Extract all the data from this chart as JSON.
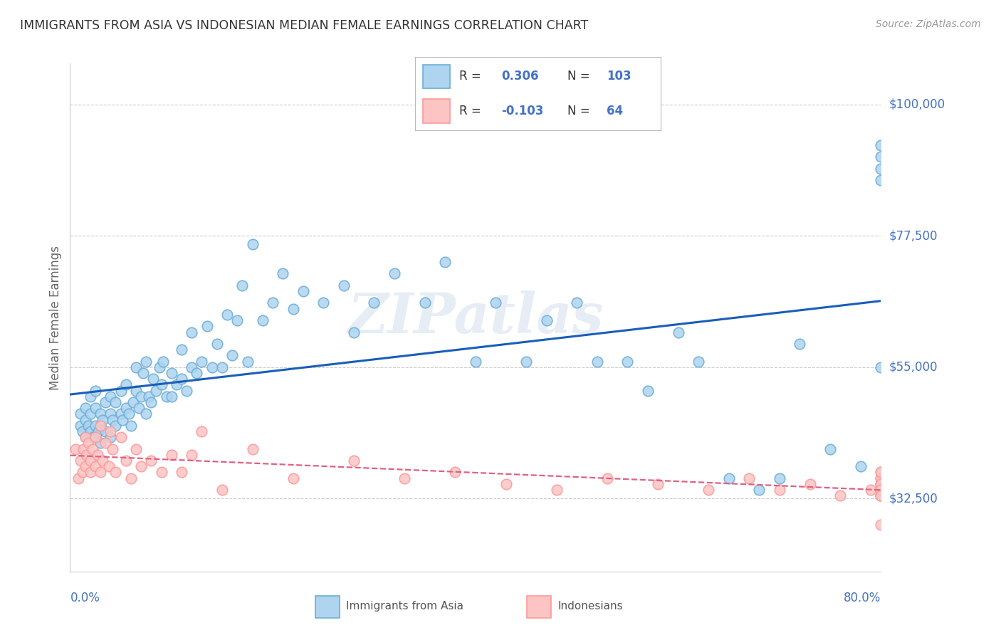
{
  "title": "IMMIGRANTS FROM ASIA VS INDONESIAN MEDIAN FEMALE EARNINGS CORRELATION CHART",
  "source": "Source: ZipAtlas.com",
  "ylabel": "Median Female Earnings",
  "yticks": [
    32500,
    55000,
    77500,
    100000
  ],
  "ytick_labels": [
    "$32,500",
    "$55,000",
    "$77,500",
    "$100,000"
  ],
  "xmin": 0.0,
  "xmax": 0.8,
  "ymin": 20000,
  "ymax": 107000,
  "watermark": "ZIPatlas",
  "blue_face": "#aed4f0",
  "blue_edge": "#6baed6",
  "pink_face": "#fcc5c4",
  "pink_edge": "#fb9a99",
  "line_blue": "#1a5eb8",
  "line_pink": "#e06080",
  "axis_color": "#4472c4",
  "grid_color": "#cccccc",
  "blue_scatter_x": [
    0.01,
    0.01,
    0.012,
    0.015,
    0.015,
    0.015,
    0.018,
    0.02,
    0.02,
    0.02,
    0.022,
    0.025,
    0.025,
    0.025,
    0.028,
    0.03,
    0.03,
    0.03,
    0.032,
    0.035,
    0.035,
    0.04,
    0.04,
    0.04,
    0.042,
    0.045,
    0.045,
    0.05,
    0.05,
    0.052,
    0.055,
    0.055,
    0.058,
    0.06,
    0.062,
    0.065,
    0.065,
    0.068,
    0.07,
    0.072,
    0.075,
    0.075,
    0.078,
    0.08,
    0.082,
    0.085,
    0.088,
    0.09,
    0.092,
    0.095,
    0.1,
    0.1,
    0.105,
    0.11,
    0.11,
    0.115,
    0.12,
    0.12,
    0.125,
    0.13,
    0.135,
    0.14,
    0.145,
    0.15,
    0.155,
    0.16,
    0.165,
    0.17,
    0.175,
    0.18,
    0.19,
    0.2,
    0.21,
    0.22,
    0.23,
    0.25,
    0.27,
    0.28,
    0.3,
    0.32,
    0.35,
    0.37,
    0.4,
    0.42,
    0.45,
    0.47,
    0.5,
    0.52,
    0.55,
    0.57,
    0.6,
    0.62,
    0.65,
    0.68,
    0.7,
    0.72,
    0.75,
    0.78,
    0.8,
    0.8,
    0.8,
    0.8,
    0.8
  ],
  "blue_scatter_y": [
    45000,
    47000,
    44000,
    43000,
    46000,
    48000,
    45000,
    44000,
    47000,
    50000,
    43000,
    45000,
    48000,
    51000,
    44000,
    42000,
    45000,
    47000,
    46000,
    44000,
    49000,
    43000,
    47000,
    50000,
    46000,
    45000,
    49000,
    47000,
    51000,
    46000,
    48000,
    52000,
    47000,
    45000,
    49000,
    51000,
    55000,
    48000,
    50000,
    54000,
    47000,
    56000,
    50000,
    49000,
    53000,
    51000,
    55000,
    52000,
    56000,
    50000,
    50000,
    54000,
    52000,
    53000,
    58000,
    51000,
    55000,
    61000,
    54000,
    56000,
    62000,
    55000,
    59000,
    55000,
    64000,
    57000,
    63000,
    69000,
    56000,
    76000,
    63000,
    66000,
    71000,
    65000,
    68000,
    66000,
    69000,
    61000,
    66000,
    71000,
    66000,
    73000,
    56000,
    66000,
    56000,
    63000,
    66000,
    56000,
    56000,
    51000,
    61000,
    56000,
    36000,
    34000,
    36000,
    59000,
    41000,
    38000,
    91000,
    89000,
    93000,
    87000,
    55000
  ],
  "pink_scatter_x": [
    0.005,
    0.008,
    0.01,
    0.012,
    0.013,
    0.015,
    0.015,
    0.016,
    0.018,
    0.02,
    0.02,
    0.022,
    0.025,
    0.025,
    0.027,
    0.03,
    0.03,
    0.032,
    0.035,
    0.038,
    0.04,
    0.042,
    0.045,
    0.05,
    0.055,
    0.06,
    0.065,
    0.07,
    0.08,
    0.09,
    0.1,
    0.11,
    0.12,
    0.13,
    0.15,
    0.18,
    0.22,
    0.28,
    0.33,
    0.38,
    0.43,
    0.48,
    0.53,
    0.58,
    0.63,
    0.67,
    0.7,
    0.73,
    0.76,
    0.79,
    0.8,
    0.8,
    0.8,
    0.8,
    0.8,
    0.8,
    0.8,
    0.8,
    0.8,
    0.8,
    0.8,
    0.8,
    0.8,
    0.8
  ],
  "pink_scatter_y": [
    41000,
    36000,
    39000,
    37000,
    41000,
    43000,
    38000,
    40000,
    42000,
    39000,
    37000,
    41000,
    38000,
    43000,
    40000,
    37000,
    45000,
    39000,
    42000,
    38000,
    44000,
    41000,
    37000,
    43000,
    39000,
    36000,
    41000,
    38000,
    39000,
    37000,
    40000,
    37000,
    40000,
    44000,
    34000,
    41000,
    36000,
    39000,
    36000,
    37000,
    35000,
    34000,
    36000,
    35000,
    34000,
    36000,
    34000,
    35000,
    33000,
    34000,
    28000,
    35000,
    36000,
    34000,
    33000,
    35000,
    37000,
    34000,
    36000,
    33000,
    35000,
    34000,
    37000,
    33000
  ]
}
